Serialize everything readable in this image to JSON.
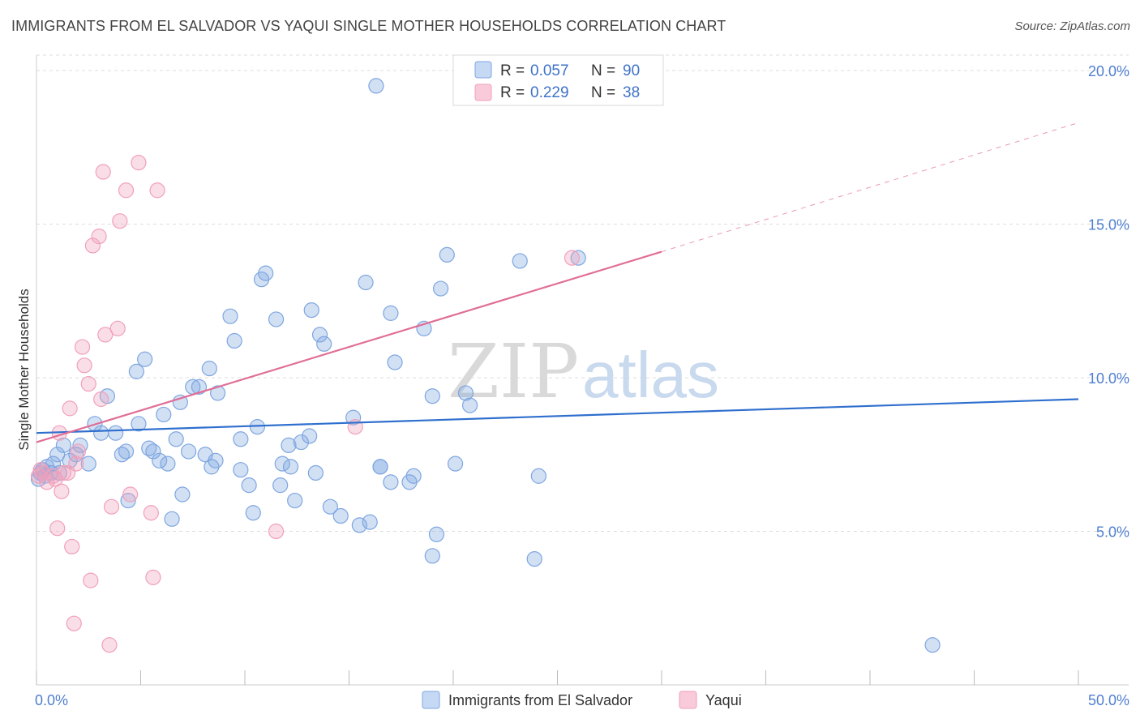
{
  "title": "IMMIGRANTS FROM EL SALVADOR VS YAQUI SINGLE MOTHER HOUSEHOLDS CORRELATION CHART",
  "source": "Source: ZipAtlas.com",
  "watermark": {
    "zip": "ZIP",
    "atlas": "atlas"
  },
  "chart_data": {
    "type": "scatter",
    "xlabel": "",
    "ylabel": "Single Mother Households",
    "xlim": [
      0,
      50
    ],
    "ylim": [
      0,
      20.5
    ],
    "x_tick_labels": [
      {
        "value": 0,
        "label": "0.0%"
      },
      {
        "value": 50,
        "label": "50.0%"
      }
    ],
    "x_minor_ticks": [
      0,
      5,
      10,
      15,
      20,
      25,
      30,
      35,
      40,
      45,
      50
    ],
    "y_ticks": [
      {
        "value": 5,
        "label": "5.0%"
      },
      {
        "value": 10,
        "label": "10.0%"
      },
      {
        "value": 15,
        "label": "15.0%"
      },
      {
        "value": 20,
        "label": "20.0%"
      }
    ],
    "grid": true,
    "legend_position": "top-center",
    "legend": [
      {
        "r_label": "R =",
        "r_value": "0.057",
        "n_label": "N =",
        "n_value": "90",
        "color": "#7ea6e0"
      },
      {
        "r_label": "R =",
        "r_value": "0.229",
        "n_label": "N =",
        "n_value": "38",
        "color": "#f0a0bb"
      }
    ],
    "series": [
      {
        "name": "Immigrants from El Salvador",
        "color": "#7ea6e0",
        "line_color": "#2f6fce",
        "trend": {
          "x0": 0,
          "y0": 8.2,
          "x1": 50,
          "y1": 9.3
        },
        "points": [
          [
            0.1,
            6.7
          ],
          [
            0.2,
            6.9
          ],
          [
            0.3,
            7.0
          ],
          [
            0.4,
            6.8
          ],
          [
            0.5,
            7.1
          ],
          [
            0.7,
            6.9
          ],
          [
            0.8,
            7.2
          ],
          [
            1.0,
            7.5
          ],
          [
            1.1,
            6.9
          ],
          [
            1.3,
            7.8
          ],
          [
            1.6,
            7.3
          ],
          [
            1.9,
            7.5
          ],
          [
            2.1,
            7.8
          ],
          [
            2.5,
            7.2
          ],
          [
            2.8,
            8.5
          ],
          [
            3.1,
            8.2
          ],
          [
            3.4,
            9.4
          ],
          [
            3.8,
            8.2
          ],
          [
            4.1,
            7.5
          ],
          [
            4.3,
            7.6
          ],
          [
            4.4,
            6.0
          ],
          [
            4.8,
            10.2
          ],
          [
            4.9,
            8.5
          ],
          [
            5.2,
            10.6
          ],
          [
            5.4,
            7.7
          ],
          [
            5.6,
            7.6
          ],
          [
            5.9,
            7.3
          ],
          [
            6.1,
            8.8
          ],
          [
            6.3,
            7.2
          ],
          [
            6.5,
            5.4
          ],
          [
            6.7,
            8.0
          ],
          [
            6.9,
            9.2
          ],
          [
            7.0,
            6.2
          ],
          [
            7.3,
            7.6
          ],
          [
            7.5,
            9.7
          ],
          [
            7.8,
            9.7
          ],
          [
            8.1,
            7.5
          ],
          [
            8.3,
            10.3
          ],
          [
            8.4,
            7.1
          ],
          [
            8.6,
            7.3
          ],
          [
            8.7,
            9.5
          ],
          [
            9.3,
            12.0
          ],
          [
            9.5,
            11.2
          ],
          [
            9.8,
            8.0
          ],
          [
            9.8,
            7.0
          ],
          [
            10.2,
            6.5
          ],
          [
            10.4,
            5.6
          ],
          [
            10.6,
            8.4
          ],
          [
            10.8,
            13.2
          ],
          [
            11.0,
            13.4
          ],
          [
            11.5,
            11.9
          ],
          [
            11.7,
            6.5
          ],
          [
            11.8,
            7.2
          ],
          [
            12.1,
            7.8
          ],
          [
            12.2,
            7.1
          ],
          [
            12.4,
            6.0
          ],
          [
            12.7,
            7.9
          ],
          [
            13.1,
            8.1
          ],
          [
            13.2,
            12.2
          ],
          [
            13.4,
            6.9
          ],
          [
            13.6,
            11.4
          ],
          [
            13.8,
            11.1
          ],
          [
            14.1,
            5.8
          ],
          [
            14.6,
            5.5
          ],
          [
            15.2,
            8.7
          ],
          [
            15.5,
            5.2
          ],
          [
            15.8,
            13.1
          ],
          [
            16.0,
            5.3
          ],
          [
            16.3,
            19.5
          ],
          [
            16.5,
            7.1
          ],
          [
            17.0,
            12.1
          ],
          [
            17.0,
            6.6
          ],
          [
            17.2,
            10.5
          ],
          [
            17.9,
            6.6
          ],
          [
            18.1,
            6.8
          ],
          [
            18.6,
            11.6
          ],
          [
            19.0,
            9.4
          ],
          [
            19.0,
            4.2
          ],
          [
            19.2,
            4.9
          ],
          [
            19.4,
            12.9
          ],
          [
            19.7,
            14.0
          ],
          [
            20.1,
            7.2
          ],
          [
            20.6,
            9.5
          ],
          [
            20.8,
            9.1
          ],
          [
            23.2,
            13.8
          ],
          [
            23.9,
            4.1
          ],
          [
            24.1,
            6.8
          ],
          [
            26.0,
            13.9
          ],
          [
            43.0,
            1.3
          ],
          [
            16.5,
            7.1
          ]
        ]
      },
      {
        "name": "Yaqui",
        "color": "#f0a0bb",
        "line_color": "#e06e96",
        "trend": {
          "x0": 0,
          "y0": 7.9,
          "x1": 30,
          "y1": 14.1,
          "dash_x1": 50,
          "dash_y1": 18.3
        },
        "points": [
          [
            0.1,
            6.8
          ],
          [
            0.2,
            7.0
          ],
          [
            0.3,
            6.9
          ],
          [
            0.5,
            6.6
          ],
          [
            0.8,
            6.8
          ],
          [
            1.0,
            5.1
          ],
          [
            1.1,
            8.2
          ],
          [
            1.2,
            6.3
          ],
          [
            1.3,
            6.9
          ],
          [
            1.6,
            9.0
          ],
          [
            1.7,
            4.5
          ],
          [
            1.8,
            2.0
          ],
          [
            1.9,
            7.2
          ],
          [
            2.0,
            7.6
          ],
          [
            2.2,
            11.0
          ],
          [
            2.3,
            10.4
          ],
          [
            2.5,
            9.8
          ],
          [
            2.6,
            3.4
          ],
          [
            2.7,
            14.3
          ],
          [
            3.0,
            14.6
          ],
          [
            3.1,
            9.3
          ],
          [
            3.2,
            16.7
          ],
          [
            3.3,
            11.4
          ],
          [
            3.5,
            1.3
          ],
          [
            3.6,
            5.8
          ],
          [
            3.9,
            11.6
          ],
          [
            4.0,
            15.1
          ],
          [
            4.3,
            16.1
          ],
          [
            4.5,
            6.2
          ],
          [
            4.9,
            17.0
          ],
          [
            5.5,
            5.6
          ],
          [
            5.6,
            3.5
          ],
          [
            5.8,
            16.1
          ],
          [
            11.5,
            5.0
          ],
          [
            15.3,
            8.4
          ],
          [
            25.7,
            13.9
          ],
          [
            0.9,
            6.7
          ],
          [
            1.5,
            6.9
          ]
        ]
      }
    ]
  }
}
